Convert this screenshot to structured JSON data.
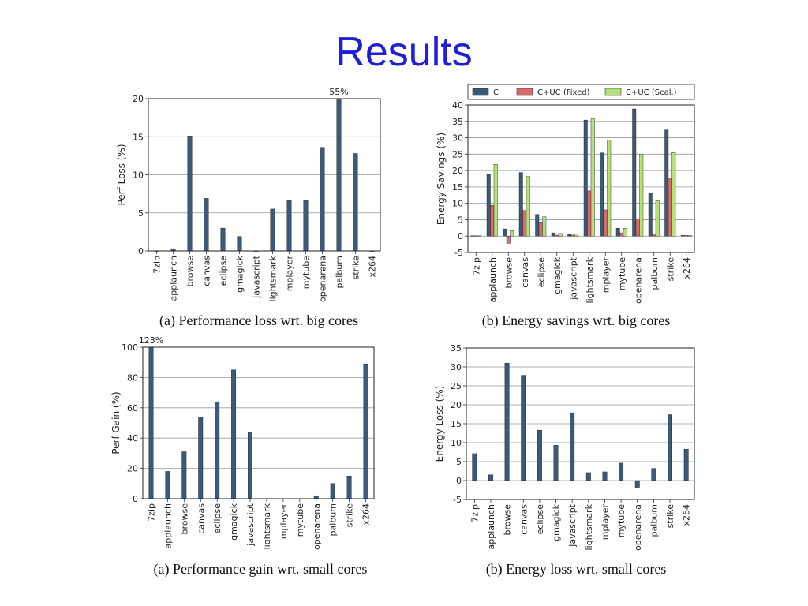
{
  "slide": {
    "title": "Results"
  },
  "colors": {
    "title": "#1f1fd6",
    "C": "#3a5a7a",
    "fixed": "#d96b6b",
    "scal": "#b7e07a"
  },
  "captions": {
    "a_top": "(a) Performance loss wrt. big cores",
    "b_top": "(b) Energy savings wrt. big cores",
    "a_bottom": "(a) Performance gain wrt. small cores",
    "b_bottom": "(b) Energy loss wrt. small cores"
  },
  "chart_data": [
    {
      "id": "perf-loss",
      "type": "bar",
      "ylabel": "Perf Loss (%)",
      "ylim": [
        0,
        20
      ],
      "yticks": [
        0,
        5,
        10,
        15,
        20
      ],
      "grid": true,
      "categories": [
        "7zip",
        "applaunch",
        "browse",
        "canvas",
        "eclipse",
        "gmagick",
        "javascript",
        "lightsmark",
        "mplayer",
        "mytube",
        "openarena",
        "palbum",
        "strike",
        "x264"
      ],
      "series": [
        {
          "values": [
            0,
            0.3,
            15.1,
            6.9,
            3.0,
            1.9,
            0,
            5.5,
            6.6,
            6.6,
            13.6,
            20,
            12.8,
            0
          ]
        }
      ],
      "annotations": [
        {
          "category": "palbum",
          "text": "55%"
        }
      ]
    },
    {
      "id": "energy-savings",
      "type": "bar",
      "ylabel": "Energy Savings (%)",
      "ylim": [
        -5,
        40
      ],
      "yticks": [
        -5,
        0,
        5,
        10,
        15,
        20,
        25,
        30,
        35,
        40
      ],
      "grid": true,
      "legend": "top",
      "categories": [
        "7zip",
        "applaunch",
        "browse",
        "canvas",
        "eclipse",
        "gmagick",
        "javascript",
        "lightsmark",
        "mplayer",
        "mytube",
        "openarena",
        "palbum",
        "strike",
        "x264"
      ],
      "series": [
        {
          "name": "C",
          "values": [
            0.1,
            18.8,
            2.2,
            19.4,
            6.6,
            1.0,
            0.5,
            35.4,
            25.4,
            2.4,
            38.8,
            13.2,
            32.4,
            0.2
          ]
        },
        {
          "name": "C+UC (Fixed)",
          "values": [
            0.1,
            9.4,
            -2.2,
            7.8,
            4.3,
            0.3,
            0.3,
            13.8,
            8.0,
            1.0,
            5.2,
            0.4,
            17.8,
            0.2
          ]
        },
        {
          "name": "C+UC (Scal.)",
          "values": [
            0.1,
            21.9,
            1.7,
            18.2,
            5.9,
            0.8,
            0.6,
            35.8,
            29.3,
            2.4,
            25.0,
            10.8,
            25.5,
            0.2
          ]
        }
      ]
    },
    {
      "id": "perf-gain",
      "type": "bar",
      "ylabel": "Perf Gain (%)",
      "ylim": [
        0,
        100
      ],
      "yticks": [
        0,
        20,
        40,
        60,
        80,
        100
      ],
      "grid": true,
      "categories": [
        "7zip",
        "applaunch",
        "browse",
        "canvas",
        "eclipse",
        "gmagick",
        "javascript",
        "lightsmark",
        "mplayer",
        "mytube",
        "openarena",
        "palbum",
        "strike",
        "x264"
      ],
      "series": [
        {
          "values": [
            100,
            18,
            31,
            54,
            64,
            85,
            44,
            0,
            0,
            0,
            2,
            10,
            15,
            89
          ]
        }
      ],
      "annotations": [
        {
          "category": "7zip",
          "text": "123%"
        }
      ]
    },
    {
      "id": "energy-loss",
      "type": "bar",
      "ylabel": "Energy Loss (%)",
      "ylim": [
        -5,
        35
      ],
      "yticks": [
        -5,
        0,
        5,
        10,
        15,
        20,
        25,
        30,
        35
      ],
      "grid": true,
      "categories": [
        "7zip",
        "applaunch",
        "browse",
        "canvas",
        "eclipse",
        "gmagick",
        "javascript",
        "lightsmark",
        "mplayer",
        "mytube",
        "openarena",
        "palbum",
        "strike",
        "x264"
      ],
      "series": [
        {
          "values": [
            7.1,
            1.5,
            31.0,
            27.8,
            13.3,
            9.3,
            17.9,
            2.1,
            2.3,
            4.6,
            -1.8,
            3.2,
            17.4,
            8.3
          ]
        }
      ]
    }
  ]
}
